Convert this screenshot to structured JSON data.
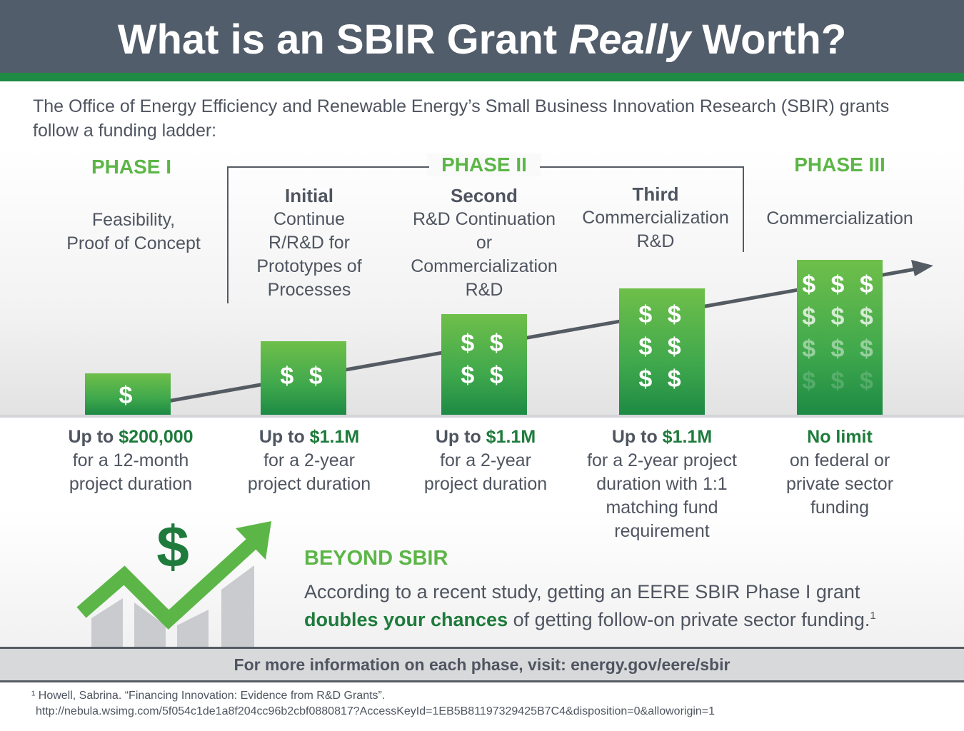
{
  "title": {
    "before": "What is an SBIR Grant ",
    "emphasis": "Really",
    "after": " Worth?"
  },
  "intro": "The Office of Energy Efficiency and Renewable Energy’s Small Business Innovation Research (SBIR) grants follow a funding ladder:",
  "phases": {
    "phase1": {
      "label": "PHASE I",
      "desc_lines": [
        "Feasibility,",
        "Proof of Concept"
      ]
    },
    "phase2": {
      "label": "PHASE II",
      "initial": {
        "name": "Initial",
        "desc_lines": [
          "Continue",
          "R/R&D for",
          "Prototypes of",
          "Processes"
        ]
      },
      "second": {
        "name": "Second",
        "desc_lines": [
          "R&D Continuation",
          "or",
          "Commercialization",
          "R&D"
        ]
      },
      "third": {
        "name": "Third",
        "desc_lines": [
          "Commercialization",
          "R&D"
        ]
      }
    },
    "phase3": {
      "label": "PHASE III",
      "desc_lines": [
        "Commercialization"
      ]
    }
  },
  "bars": [
    {
      "dollar_rows": [
        "$"
      ]
    },
    {
      "dollar_rows": [
        "$ $"
      ]
    },
    {
      "dollar_rows": [
        "$ $",
        "$ $"
      ]
    },
    {
      "dollar_rows": [
        "$ $",
        "$ $",
        "$ $"
      ]
    },
    {
      "dollar_rows": [
        "$ $ $",
        "$ $ $",
        "$ $ $",
        "$ $ $"
      ]
    }
  ],
  "amounts": [
    {
      "prefix": "Up to ",
      "value": "$200,000",
      "lines": [
        "for a 12-month",
        "project duration"
      ]
    },
    {
      "prefix": "Up to ",
      "value": "$1.1M",
      "lines": [
        "for a 2-year",
        "project duration"
      ]
    },
    {
      "prefix": "Up to ",
      "value": "$1.1M",
      "lines": [
        "for a 2-year",
        "project duration"
      ]
    },
    {
      "prefix": "Up to ",
      "value": "$1.1M",
      "lines": [
        "for a 2-year project",
        "duration with 1:1",
        "matching fund",
        "requirement"
      ]
    },
    {
      "value": "No limit",
      "lines": [
        "on federal or",
        "private sector",
        "funding"
      ]
    }
  ],
  "beyond": {
    "heading": "BEYOND SBIR",
    "line1": "According to a recent study, getting an EERE SBIR Phase I grant",
    "bold": "doubles your chances",
    "line2": " of getting follow-on private sector funding.",
    "sup": "1",
    "icon_symbol": "$"
  },
  "footer": {
    "text": "For more information on each phase, visit: ",
    "link": "energy.gov/eere/sbir"
  },
  "footnote": {
    "line1": "¹ Howell, Sabrina. “Financing Innovation: Evidence from R&D Grants”.",
    "line2": "http://nebula.wsimg.com/5f054c1de1a8f204cc96b2cbf0880817?AccessKeyId=1EB5B81197329425B7C4&disposition=0&alloworigin=1"
  },
  "colors": {
    "header_bg": "#525d6b",
    "accent_green": "#1e8a43",
    "light_green": "#5cb647",
    "dark_green": "#1e7b3c",
    "text_gray": "#4f5560"
  }
}
